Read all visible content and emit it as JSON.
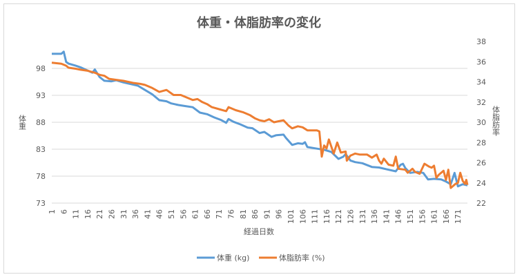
{
  "chart_data": {
    "type": "line",
    "title": "体重・体脂肪率の変化",
    "xlabel": "経過日数",
    "ylabel": "体重",
    "y2label": "体脂肪率",
    "x_range": [
      1,
      175
    ],
    "x_tick_labels": [
      "1",
      "6",
      "11",
      "16",
      "21",
      "26",
      "31",
      "36",
      "41",
      "46",
      "51",
      "56",
      "61",
      "66",
      "71",
      "76",
      "81",
      "86",
      "91",
      "96",
      "101",
      "106",
      "111",
      "116",
      "121",
      "126",
      "131",
      "136",
      "141",
      "146",
      "151",
      "156",
      "161",
      "166",
      "171"
    ],
    "ylim": [
      73,
      103
    ],
    "y_tick_labels": [
      "73",
      "78",
      "83",
      "88",
      "93",
      "98"
    ],
    "y2lim": [
      22,
      38
    ],
    "y2_tick_labels": [
      "22",
      "24",
      "26",
      "28",
      "30",
      "32",
      "34",
      "36",
      "38"
    ],
    "grid": true,
    "legend_position": "bottom",
    "series": [
      {
        "name": "体重 (kg)",
        "axis": "left",
        "color": "#5B9BD5",
        "points": [
          [
            1,
            100.7
          ],
          [
            5,
            100.7
          ],
          [
            6,
            101.1
          ],
          [
            7,
            99.2
          ],
          [
            8,
            98.9
          ],
          [
            11,
            98.5
          ],
          [
            13,
            98.2
          ],
          [
            16,
            97.6
          ],
          [
            18,
            97.2
          ],
          [
            19,
            97.8
          ],
          [
            21,
            96.4
          ],
          [
            23,
            95.7
          ],
          [
            26,
            95.6
          ],
          [
            28,
            95.8
          ],
          [
            31,
            95.4
          ],
          [
            35,
            95.0
          ],
          [
            37,
            94.8
          ],
          [
            40,
            94.0
          ],
          [
            43,
            93.2
          ],
          [
            46,
            92.1
          ],
          [
            49,
            91.9
          ],
          [
            51,
            91.5
          ],
          [
            54,
            91.2
          ],
          [
            57,
            91.0
          ],
          [
            60,
            90.8
          ],
          [
            63,
            89.8
          ],
          [
            66,
            89.5
          ],
          [
            69,
            88.9
          ],
          [
            72,
            88.4
          ],
          [
            74,
            87.9
          ],
          [
            75,
            88.6
          ],
          [
            77,
            88.1
          ],
          [
            80,
            87.6
          ],
          [
            83,
            87.0
          ],
          [
            85,
            86.9
          ],
          [
            88,
            86.0
          ],
          [
            90,
            86.2
          ],
          [
            93,
            85.3
          ],
          [
            95,
            85.6
          ],
          [
            98,
            85.7
          ],
          [
            99,
            85.1
          ],
          [
            101.6,
            83.8
          ],
          [
            104,
            84.1
          ],
          [
            106,
            84.0
          ],
          [
            107,
            84.3
          ],
          [
            108,
            83.4
          ],
          [
            112,
            83.1
          ],
          [
            115,
            82.9
          ],
          [
            118,
            82.5
          ],
          [
            121,
            81.2
          ],
          [
            123,
            81.6
          ],
          [
            124,
            82.1
          ],
          [
            126,
            80.9
          ],
          [
            128,
            80.6
          ],
          [
            131,
            80.4
          ],
          [
            135,
            79.7
          ],
          [
            138,
            79.6
          ],
          [
            141,
            79.3
          ],
          [
            145,
            78.9
          ],
          [
            147,
            80.1
          ],
          [
            148,
            80.3
          ],
          [
            149,
            79.5
          ],
          [
            151,
            78.6
          ],
          [
            154,
            78.8
          ],
          [
            156.5,
            78.6
          ],
          [
            158.5,
            77.4
          ],
          [
            161,
            77.5
          ],
          [
            164,
            77.4
          ],
          [
            166,
            77.0
          ],
          [
            168,
            76.5
          ],
          [
            169.6,
            78.6
          ],
          [
            171,
            76.1
          ],
          [
            173,
            76.5
          ],
          [
            175,
            76.3
          ]
        ]
      },
      {
        "name": "体脂肪率 (%)",
        "axis": "right",
        "color": "#ED7D31",
        "points": [
          [
            1,
            35.9
          ],
          [
            5,
            35.8
          ],
          [
            7,
            35.6
          ],
          [
            8,
            35.4
          ],
          [
            11,
            35.3
          ],
          [
            13,
            35.2
          ],
          [
            16,
            35.1
          ],
          [
            19,
            34.9
          ],
          [
            21,
            34.7
          ],
          [
            23,
            34.6
          ],
          [
            25,
            34.3
          ],
          [
            28,
            34.2
          ],
          [
            31,
            34.1
          ],
          [
            35,
            33.9
          ],
          [
            38,
            33.8
          ],
          [
            40,
            33.7
          ],
          [
            43,
            33.4
          ],
          [
            46,
            33.0
          ],
          [
            49,
            33.2
          ],
          [
            52,
            32.7
          ],
          [
            55,
            32.7
          ],
          [
            57,
            32.5
          ],
          [
            60,
            32.2
          ],
          [
            62,
            32.3
          ],
          [
            64,
            32.0
          ],
          [
            66,
            31.8
          ],
          [
            68,
            31.5
          ],
          [
            71,
            31.3
          ],
          [
            74,
            31.1
          ],
          [
            75,
            31.5
          ],
          [
            78,
            31.2
          ],
          [
            81,
            31.0
          ],
          [
            84,
            30.7
          ],
          [
            86,
            30.4
          ],
          [
            88,
            30.2
          ],
          [
            90,
            30.1
          ],
          [
            92,
            30.3
          ],
          [
            94,
            30.0
          ],
          [
            96,
            30.1
          ],
          [
            98,
            30.2
          ],
          [
            100,
            29.7
          ],
          [
            101.6,
            29.4
          ],
          [
            104,
            29.6
          ],
          [
            106,
            29.5
          ],
          [
            108,
            29.2
          ],
          [
            112,
            29.2
          ],
          [
            113,
            29.1
          ],
          [
            114,
            26.6
          ],
          [
            115,
            27.7
          ],
          [
            116,
            27.4
          ],
          [
            117,
            28.3
          ],
          [
            119,
            26.9
          ],
          [
            120.5,
            28.0
          ],
          [
            122,
            27.0
          ],
          [
            124,
            27.1
          ],
          [
            124.5,
            26.2
          ],
          [
            126,
            26.7
          ],
          [
            128,
            26.9
          ],
          [
            130,
            26.8
          ],
          [
            133,
            26.8
          ],
          [
            135,
            26.5
          ],
          [
            137,
            26.8
          ],
          [
            138,
            26.2
          ],
          [
            139,
            25.9
          ],
          [
            140,
            26.4
          ],
          [
            142,
            25.8
          ],
          [
            144,
            25.7
          ],
          [
            145,
            26.6
          ],
          [
            146,
            25.4
          ],
          [
            149,
            25.3
          ],
          [
            150,
            25.0
          ],
          [
            152,
            25.4
          ],
          [
            153,
            25.1
          ],
          [
            155,
            24.9
          ],
          [
            157,
            25.9
          ],
          [
            159,
            25.6
          ],
          [
            160,
            25.5
          ],
          [
            161,
            25.7
          ],
          [
            162,
            24.5
          ],
          [
            163,
            24.8
          ],
          [
            165,
            25.2
          ],
          [
            166,
            24.3
          ],
          [
            167,
            25.3
          ],
          [
            168,
            23.5
          ],
          [
            170,
            23.9
          ],
          [
            171,
            24.0
          ],
          [
            172,
            25.0
          ],
          [
            173,
            24.2
          ],
          [
            174,
            23.9
          ],
          [
            174.5,
            24.3
          ],
          [
            175,
            23.8
          ]
        ]
      }
    ]
  }
}
